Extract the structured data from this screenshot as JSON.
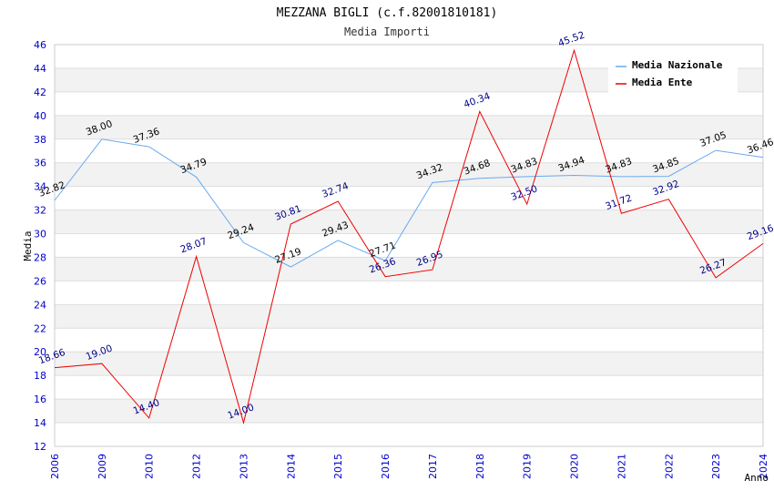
{
  "chart_data": {
    "type": "line",
    "title": "MEZZANA BIGLI (c.f.82001810181)",
    "subtitle": "Media Importi",
    "xlabel": "Anno",
    "ylabel": "Media",
    "ylim": [
      12,
      46
    ],
    "yticks": [
      12,
      14,
      16,
      18,
      20,
      22,
      24,
      26,
      28,
      30,
      32,
      34,
      36,
      38,
      40,
      42,
      44,
      46
    ],
    "categories": [
      "2006",
      "2009",
      "2010",
      "2012",
      "2013",
      "2014",
      "2015",
      "2016",
      "2017",
      "2018",
      "2019",
      "2020",
      "2021",
      "2022",
      "2023",
      "2024"
    ],
    "legend_position": "top-right",
    "series": [
      {
        "name": "Media Nazionale",
        "color": "#66aaee",
        "label_color": "#000000",
        "values": [
          32.82,
          38.0,
          37.36,
          34.79,
          29.24,
          27.19,
          29.43,
          27.71,
          34.32,
          34.68,
          34.83,
          34.94,
          34.83,
          34.85,
          37.05,
          36.46
        ],
        "labels": [
          "32.82",
          "38.00",
          "37.36",
          "34.79",
          "29.24",
          "27.19",
          "29.43",
          "27.71",
          "34.32",
          "34.68",
          "34.83",
          "34.94",
          "34.83",
          "34.85",
          "37.05",
          "36.46"
        ]
      },
      {
        "name": "Media Ente",
        "color": "#ee0000",
        "label_color": "#000088",
        "values": [
          18.66,
          19.0,
          14.4,
          28.07,
          14.0,
          30.81,
          32.74,
          26.36,
          26.95,
          40.34,
          32.5,
          45.52,
          31.72,
          32.92,
          26.27,
          29.16
        ],
        "labels": [
          "18.66",
          "19.00",
          "14.40",
          "28.07",
          "14.00",
          "30.81",
          "32.74",
          "26.36",
          "26.95",
          "40.34",
          "32.50",
          "45.52",
          "31.72",
          "32.92",
          "26.27",
          "29.16"
        ]
      }
    ]
  }
}
